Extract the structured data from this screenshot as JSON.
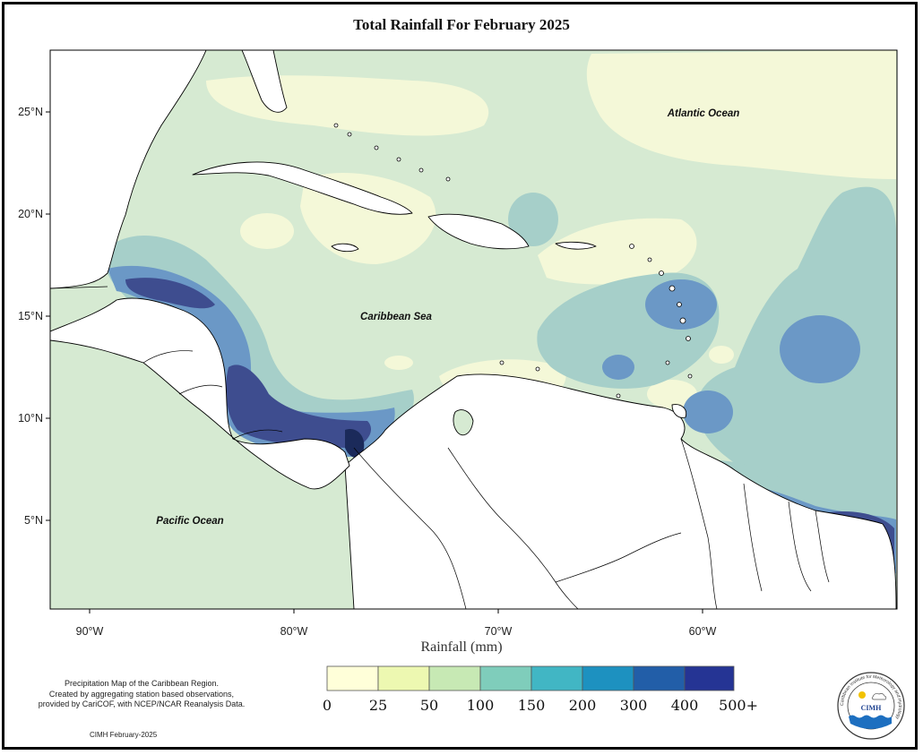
{
  "title": "Total Rainfall For February 2025",
  "ocean_labels": {
    "atlantic": "Atlantic Ocean",
    "caribbean": "Caribbean Sea",
    "pacific": "Pacific Ocean"
  },
  "axes": {
    "lat_ticks": [
      "25°N",
      "20°N",
      "15°N",
      "10°N",
      "5°N"
    ],
    "lon_ticks": [
      "90°W",
      "80°W",
      "70°W",
      "60°W"
    ],
    "xlabel": "Rainfall (mm)"
  },
  "legend": {
    "labels": [
      "0",
      "25",
      "50",
      "100",
      "150",
      "200",
      "300",
      "400",
      "500+"
    ],
    "colors": [
      "#ffffd9",
      "#edf8b1",
      "#c7e9b4",
      "#7fcdbb",
      "#41b6c4",
      "#1d91c0",
      "#225ea8",
      "#253494",
      "#081d58"
    ]
  },
  "note_lines": [
    "Precipitation Map of the Caribbean Region.",
    "Created by aggregating station based observations,",
    "provided by CariCOF, with NCEP/NCAR Reanalysis Data."
  ],
  "credit": "CIMH February-2025",
  "logo": {
    "text": "CIMH",
    "ring_text": "Caribbean Institute for Meteorology and Hydrology"
  }
}
